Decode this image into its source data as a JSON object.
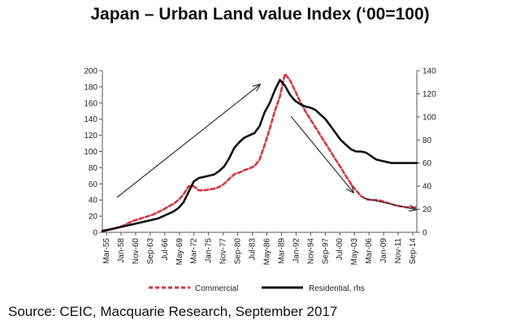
{
  "title": "Japan – Urban Land value Index (‘00=100)",
  "source": "Source: CEIC, Macquarie Research, September 2017",
  "colors": {
    "commercial": "#d9343f",
    "residential": "#111111",
    "axis": "#555555",
    "arrow": "#333333"
  },
  "chart_data": {
    "type": "line",
    "x": [
      1955,
      1956,
      1957,
      1958,
      1959,
      1960,
      1961,
      1962,
      1963,
      1964,
      1965,
      1966,
      1967,
      1968,
      1969,
      1970,
      1971,
      1972,
      1973,
      1974,
      1975,
      1976,
      1977,
      1978,
      1979,
      1980,
      1981,
      1982,
      1983,
      1984,
      1985,
      1986,
      1987,
      1988,
      1989,
      1990,
      1991,
      1992,
      1993,
      1994,
      1995,
      1996,
      1997,
      1998,
      1999,
      2000,
      2001,
      2002,
      2003,
      2004,
      2005,
      2006,
      2007,
      2008,
      2009,
      2010,
      2011,
      2012,
      2013,
      2014,
      2015,
      2016,
      2017
    ],
    "x_tick_labels": [
      "Mar-55",
      "Jan-58",
      "Nov-60",
      "Sep-63",
      "Jul-66",
      "May-69",
      "Mar-72",
      "Jan-75",
      "Nov-77",
      "Sep-80",
      "Jul-83",
      "May-86",
      "Mar-89",
      "Jan-92",
      "Nov-94",
      "Sep-97",
      "Jul-00",
      "May-03",
      "Mar-06",
      "Jan-09",
      "Nov-11",
      "Sep-14"
    ],
    "series": [
      {
        "name": "Commercial",
        "axis": "left",
        "values": [
          2,
          3,
          4,
          6,
          8,
          11,
          14,
          16,
          18,
          20,
          22,
          25,
          28,
          32,
          35,
          40,
          47,
          57,
          57,
          52,
          52,
          53,
          54,
          56,
          60,
          66,
          72,
          74,
          77,
          79,
          82,
          90,
          108,
          128,
          150,
          168,
          196,
          188,
          175,
          162,
          150,
          140,
          130,
          120,
          110,
          100,
          90,
          80,
          70,
          60,
          52,
          45,
          41,
          40,
          40,
          39,
          37,
          35,
          33,
          32,
          31,
          31,
          31
        ]
      },
      {
        "name": "Residential, rhs",
        "axis": "right",
        "values": [
          1,
          2,
          3,
          4,
          5,
          6,
          7,
          8,
          9,
          10,
          11,
          12,
          14,
          16,
          18,
          21,
          26,
          35,
          44,
          47,
          48,
          49,
          50,
          53,
          57,
          64,
          73,
          78,
          82,
          84,
          86,
          92,
          104,
          112,
          123,
          132,
          127,
          119,
          114,
          111,
          109,
          108,
          106,
          102,
          98,
          92,
          86,
          80,
          76,
          72,
          70,
          70,
          69,
          66,
          63,
          62,
          61,
          60,
          60,
          60,
          60,
          60,
          60
        ]
      }
    ],
    "ylim_left": [
      0,
      200
    ],
    "yticks_left": [
      0,
      20,
      40,
      60,
      80,
      100,
      120,
      140,
      160,
      180,
      200
    ],
    "ylim_right": [
      0,
      140
    ],
    "yticks_right": [
      0,
      20,
      40,
      60,
      80,
      100,
      120,
      140
    ],
    "grid": false,
    "legend_position": "bottom"
  }
}
